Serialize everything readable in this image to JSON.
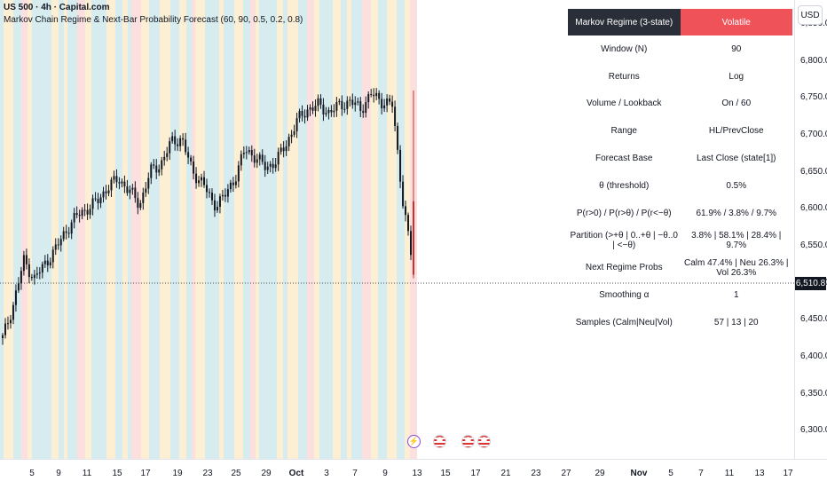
{
  "header": {
    "symbol": "US 500 · 4h · Capital.com",
    "indicator": "Markov Chain Regime & Next-Bar Probability Forecast (60, 90, 0.5, 0.2, 0.8)"
  },
  "currency_button": "USD",
  "last_price": "6,510.8",
  "price_axis": [
    "6,850.0",
    "6,800.0",
    "6,750.0",
    "6,700.0",
    "6,650.0",
    "6,600.0",
    "6,550.0",
    "6,500.0",
    "6,450.0",
    "6,400.0",
    "6,350.0",
    "6,300.0"
  ],
  "time_axis": [
    {
      "label": "5",
      "bold": false
    },
    {
      "label": "9",
      "bold": false
    },
    {
      "label": "11",
      "bold": false
    },
    {
      "label": "15",
      "bold": false
    },
    {
      "label": "17",
      "bold": false
    },
    {
      "label": "19",
      "bold": false
    },
    {
      "label": "23",
      "bold": false
    },
    {
      "label": "25",
      "bold": false
    },
    {
      "label": "29",
      "bold": false
    },
    {
      "label": "Oct",
      "bold": true
    },
    {
      "label": "3",
      "bold": false
    },
    {
      "label": "7",
      "bold": false
    },
    {
      "label": "9",
      "bold": false
    },
    {
      "label": "13",
      "bold": false
    },
    {
      "label": "15",
      "bold": false
    },
    {
      "label": "17",
      "bold": false
    },
    {
      "label": "21",
      "bold": false
    },
    {
      "label": "23",
      "bold": false
    },
    {
      "label": "27",
      "bold": false
    },
    {
      "label": "29",
      "bold": false
    },
    {
      "label": "Nov",
      "bold": true
    },
    {
      "label": "5",
      "bold": false
    },
    {
      "label": "7",
      "bold": false
    },
    {
      "label": "11",
      "bold": false
    },
    {
      "label": "13",
      "bold": false
    },
    {
      "label": "17",
      "bold": false
    }
  ],
  "regime_table": {
    "header": {
      "label": "Markov Regime (3-state)",
      "value": "Volatile"
    },
    "rows": [
      {
        "label": "Window (N)",
        "value": "90"
      },
      {
        "label": "Returns",
        "value": "Log"
      },
      {
        "label": "Volume / Lookback",
        "value": "On / 60"
      },
      {
        "label": "Range",
        "value": "HL/PrevClose"
      },
      {
        "label": "Forecast Base",
        "value": "Last Close (state[1])"
      },
      {
        "label": "θ (threshold)",
        "value": "0.5%"
      },
      {
        "label": "P(r>0) / P(r>θ) / P(r<−θ)",
        "value": "61.9% / 3.8% / 9.7%"
      },
      {
        "label": "Partition (>+θ | 0..+θ | −θ..0 | <−θ)",
        "value": "3.8% | 58.1% | 28.4% | 9.7%"
      },
      {
        "label": "Next Regime Probs",
        "value": "Calm 47.4% | Neu 26.3% | Vol 26.3%"
      },
      {
        "label": "Smoothing α",
        "value": "1"
      },
      {
        "label": "Samples (Calm|Neu|Vol)",
        "value": "57 | 13 | 20"
      }
    ]
  },
  "event_icons": [
    "bolt-icon",
    "us-flag-icon",
    "us-flag-icon",
    "us-flag-icon"
  ],
  "colors": {
    "up_candle": "#131722",
    "calm_band": "#d6ecef",
    "neutral_band": "#fcefd4",
    "volatile_band": "#fbe0df",
    "header_dark": "#2a2e39",
    "header_volatile": "#f0525a",
    "crash_candle": "#d12d2d"
  },
  "chart_data": {
    "type": "candlestick",
    "interval": "4h",
    "ylim": [
      6275,
      6875
    ],
    "last_close": 6510.8,
    "anchor_closes": [
      6425,
      6470,
      6530,
      6505,
      6525,
      6545,
      6570,
      6590,
      6600,
      6610,
      6630,
      6640,
      6625,
      6605,
      6650,
      6660,
      6690,
      6695,
      6650,
      6635,
      6605,
      6615,
      6640,
      6680,
      6670,
      6655,
      6665,
      6690,
      6720,
      6735,
      6740,
      6730,
      6740,
      6745,
      6735,
      6755,
      6745,
      6740,
      6610,
      6515
    ]
  }
}
